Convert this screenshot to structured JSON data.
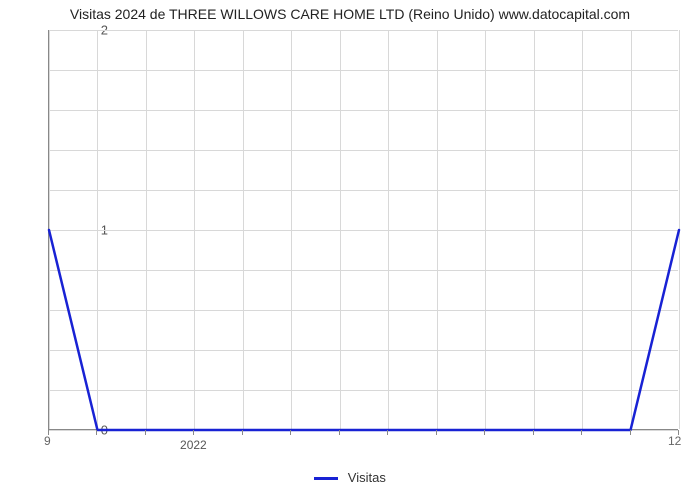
{
  "title": "Visitas 2024 de THREE WILLOWS CARE HOME LTD (Reino Unido) www.datocapital.com",
  "chart": {
    "type": "line",
    "background_color": "#ffffff",
    "grid_color": "#d8d8d8",
    "axis_color": "#888888",
    "title_fontsize": 14,
    "label_fontsize": 13,
    "line_color": "#1822d4",
    "line_width": 2.5,
    "ylim": [
      0,
      2
    ],
    "y_ticks_major": [
      0,
      1,
      2
    ],
    "y_minor_count": 4,
    "x_points": 14,
    "x_left_label": "9",
    "x_right_label": "12",
    "x_tick_label": "2022",
    "x_tick_label_index": 3,
    "data_y": [
      1,
      0,
      0,
      0,
      0,
      0,
      0,
      0,
      0,
      0,
      0,
      0,
      0,
      1
    ],
    "legend_label": "Visitas"
  }
}
